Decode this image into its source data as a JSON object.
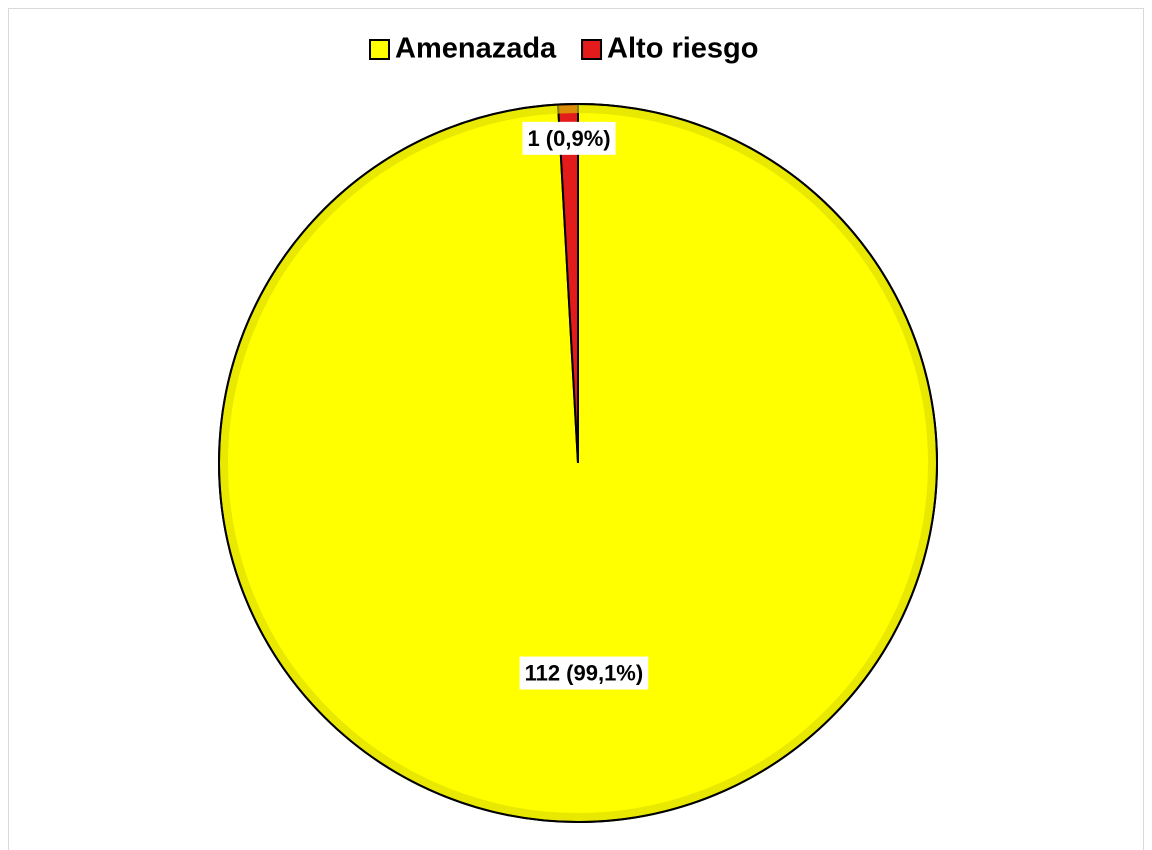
{
  "chart_data": {
    "type": "pie",
    "categories": [
      "Amenazada",
      "Alto riesgo"
    ],
    "values": [
      112,
      1
    ],
    "value_labels": [
      "112 (99,1%)",
      "1 (0,9%)"
    ],
    "colors": [
      "#ffff00",
      "#e31b1b"
    ],
    "legend": "top"
  }
}
